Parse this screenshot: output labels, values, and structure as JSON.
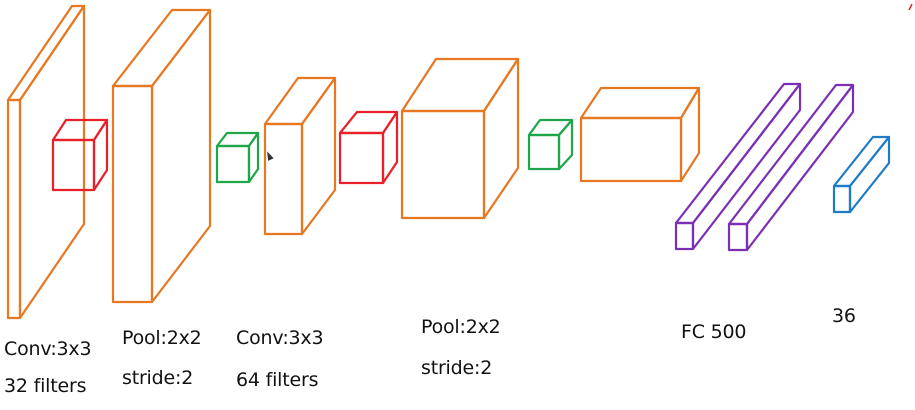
{
  "colors": {
    "orange": "#E87722",
    "red": "#E8202A",
    "green": "#1FA64A",
    "purple": "#7B2FB5",
    "blue": "#1E7BC8"
  },
  "labels": {
    "conv1_line1": "Conv:3x3",
    "conv1_line2": "32 filters",
    "pool1_line1": "Pool:2x2",
    "pool1_line2": "stride:2",
    "conv2_line1": "Conv:3x3",
    "conv2_line2": "64 filters",
    "pool2_line1": "Pool:2x2",
    "pool2_line2": "stride:2",
    "fc": "FC  500",
    "output": "36"
  }
}
